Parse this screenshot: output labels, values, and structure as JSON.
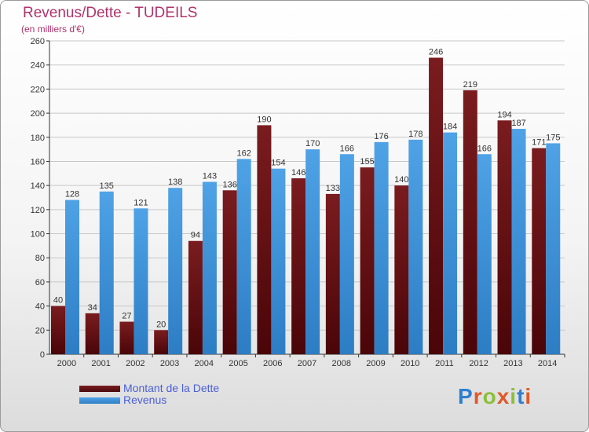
{
  "title": "Revenus/Dette - TUDEILS",
  "subtitle": "(en milliers d'€)",
  "logo": {
    "text": "Proxiti",
    "letter_colors": [
      "#2f7fd0",
      "#e0592a",
      "#8bbf3a",
      "#e0592a",
      "#8bbf3a",
      "#2f7fd0",
      "#e0592a"
    ]
  },
  "colors": {
    "dette": "#7a1c1f",
    "revenus": "#4fa2e6",
    "axis": "#333333",
    "grid": "#c8c8c8"
  },
  "chart_data": {
    "type": "bar",
    "categories": [
      "2000",
      "2001",
      "2002",
      "2003",
      "2004",
      "2005",
      "2006",
      "2007",
      "2008",
      "2009",
      "2010",
      "2011",
      "2012",
      "2013",
      "2014"
    ],
    "series": [
      {
        "name": "Montant de la Dette",
        "values": [
          40,
          34,
          27,
          20,
          94,
          136,
          190,
          146,
          133,
          155,
          140,
          246,
          219,
          194,
          171
        ]
      },
      {
        "name": "Revenus",
        "values": [
          128,
          135,
          121,
          138,
          143,
          162,
          154,
          170,
          166,
          176,
          178,
          184,
          166,
          187,
          175
        ]
      }
    ],
    "ylim": [
      0,
      260
    ],
    "yticks": [
      0,
      20,
      40,
      60,
      80,
      100,
      120,
      140,
      160,
      180,
      200,
      220,
      240,
      260
    ],
    "grid": true,
    "legend_position": "bottom-left"
  }
}
